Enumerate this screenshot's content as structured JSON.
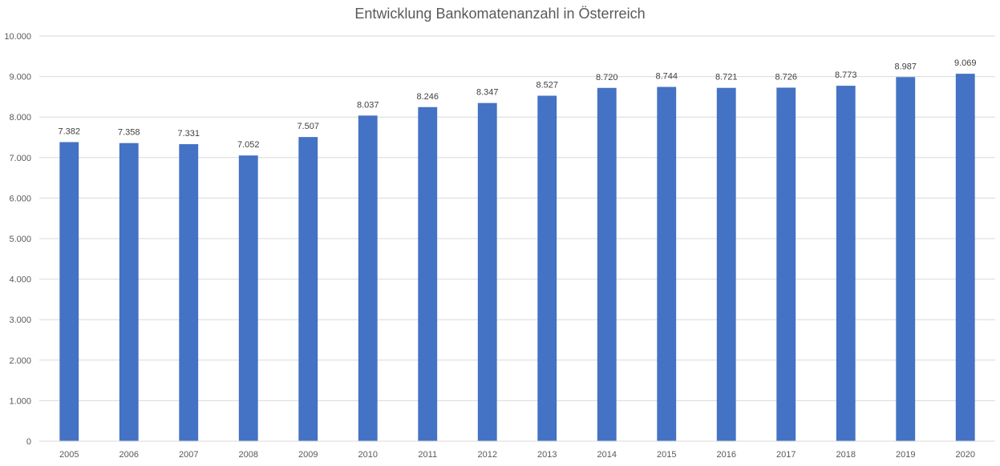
{
  "chart_data": {
    "type": "bar",
    "title": "Entwicklung Bankomatenanzahl in Österreich",
    "xlabel": "",
    "ylabel": "",
    "categories": [
      "2005",
      "2006",
      "2007",
      "2008",
      "2009",
      "2010",
      "2011",
      "2012",
      "2013",
      "2014",
      "2015",
      "2016",
      "2017",
      "2018",
      "2019",
      "2020"
    ],
    "values": [
      7382,
      7358,
      7331,
      7052,
      7507,
      8037,
      8246,
      8347,
      8527,
      8720,
      8744,
      8721,
      8726,
      8773,
      8987,
      9069
    ],
    "value_labels": [
      "7.382",
      "7.358",
      "7.331",
      "7.052",
      "7.507",
      "8.037",
      "8.246",
      "8.347",
      "8.527",
      "8.720",
      "8.744",
      "8.721",
      "8.726",
      "8.773",
      "8.987",
      "9.069"
    ],
    "yticks": [
      0,
      1000,
      2000,
      3000,
      4000,
      5000,
      6000,
      7000,
      8000,
      9000,
      10000
    ],
    "ytick_labels": [
      "0",
      "1.000",
      "2.000",
      "3.000",
      "4.000",
      "5.000",
      "6.000",
      "7.000",
      "8.000",
      "9.000",
      "10.000"
    ],
    "ylim": [
      0,
      10000
    ],
    "grid": true,
    "legend": "none",
    "colors": {
      "bar": "#4472C4",
      "grid": "#D9D9D9",
      "axis": "#D9D9D9",
      "title": "#595959",
      "tick_label": "#595959",
      "data_label": "#404040"
    }
  }
}
